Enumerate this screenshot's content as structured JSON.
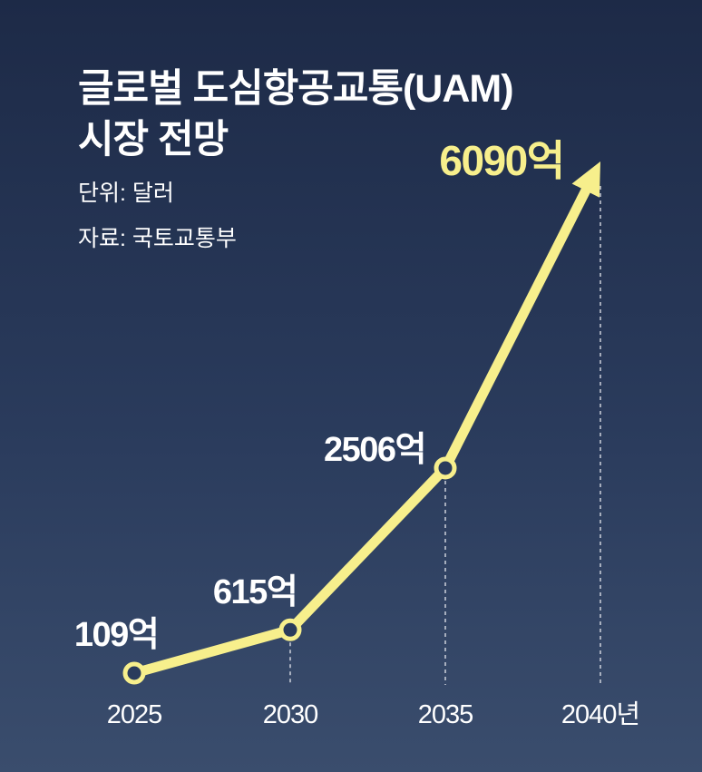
{
  "header": {
    "title_line1": "글로벌 도심항공교통(UAM)",
    "title_line2": "시장 전망",
    "unit": "단위: 달러",
    "source": "자료: 국토교통부"
  },
  "colors": {
    "line": "#f7ef8c",
    "marker_fill": "#2a3b5c",
    "guide": "#e6e8ee",
    "text": "#ffffff",
    "highlight_label": "#f7ef8c"
  },
  "chart_data": {
    "type": "line",
    "title": "글로벌 도심항공교통(UAM) 시장 전망",
    "unit": "단위: 달러",
    "source": "자료: 국토교통부",
    "categories": [
      "2025",
      "2030",
      "2035",
      "2040년"
    ],
    "values": [
      109,
      615,
      2506,
      6090
    ],
    "value_labels": [
      "109억",
      "615억",
      "2506억",
      "6090억"
    ],
    "value_unit": "억 달러",
    "ylim": [
      0,
      6500
    ],
    "grid": false,
    "legend": "none",
    "last_point_arrow": true
  }
}
